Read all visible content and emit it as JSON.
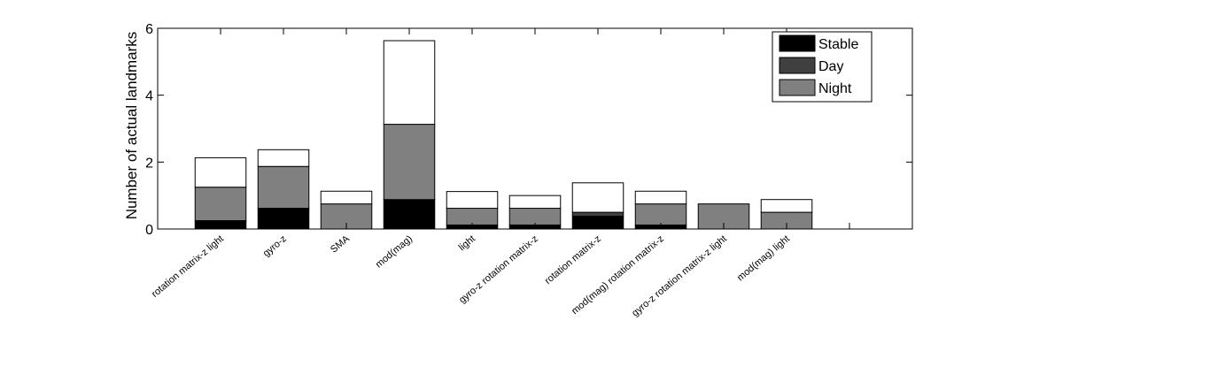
{
  "chart_data": {
    "type": "bar",
    "stacked": true,
    "ylabel": "Number of actual landmarks",
    "ylim": [
      0,
      6
    ],
    "yticks": [
      0,
      2,
      4,
      6
    ],
    "grid": false,
    "legend_position": "top-right",
    "categories": [
      "rotation matrix-z  light",
      "gyro-z",
      "SMA",
      "mod(mag)",
      "light",
      "gyro-z  rotation matrix-z",
      "rotation matrix-z",
      "mod(mag)  rotation matrix-z",
      "gyro-z  rotation matrix-z  light",
      "mod(mag)  light"
    ],
    "xlim_slots": 12,
    "series": [
      {
        "name": "Stable",
        "color": "#000000",
        "values": [
          0.25,
          0.62,
          0,
          0.88,
          0.12,
          0.12,
          0.38,
          0.12,
          0,
          0
        ]
      },
      {
        "name": "Day",
        "color": "#404040",
        "values": [
          0,
          0,
          0,
          0,
          0,
          0,
          0.12,
          0,
          0,
          0
        ]
      },
      {
        "name": "Night",
        "color": "#808080",
        "values": [
          1.0,
          1.25,
          0.75,
          2.25,
          0.5,
          0.5,
          0,
          0.63,
          0.75,
          0.5
        ]
      },
      {
        "name": "",
        "color": "#ffffff",
        "values": [
          0.88,
          0.5,
          0.38,
          2.5,
          0.5,
          0.38,
          0.88,
          0.38,
          0,
          0.38
        ]
      }
    ]
  }
}
